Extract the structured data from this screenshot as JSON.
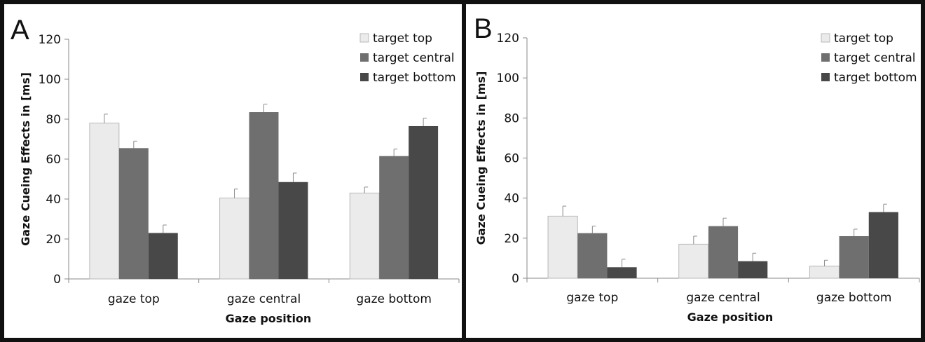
{
  "chart_data": [
    {
      "panel_label": "A",
      "type": "bar",
      "categories": [
        "gaze top",
        "gaze central",
        "gaze bottom"
      ],
      "series": [
        {
          "name": "target top",
          "color": "#ebebeb",
          "values": [
            78,
            40.5,
            43
          ],
          "errors": [
            4.5,
            4.5,
            3
          ]
        },
        {
          "name": "target central",
          "color": "#6f6f6f",
          "values": [
            65.5,
            83.5,
            61.5
          ],
          "errors": [
            3.5,
            4,
            3.5
          ]
        },
        {
          "name": "target bottom",
          "color": "#484848",
          "values": [
            23,
            48.5,
            76.5
          ],
          "errors": [
            4,
            4.5,
            4
          ]
        }
      ],
      "xlabel": "Gaze position",
      "ylabel": "Gaze Cueing Effects in [ms]",
      "ylim": [
        0,
        120
      ],
      "yticks": [
        0,
        20,
        40,
        60,
        80,
        100,
        120
      ],
      "grid": false,
      "legend_position": "top-right"
    },
    {
      "panel_label": "B",
      "type": "bar",
      "categories": [
        "gaze top",
        "gaze central",
        "gaze bottom"
      ],
      "series": [
        {
          "name": "target top",
          "color": "#ebebeb",
          "values": [
            31,
            17,
            6
          ],
          "errors": [
            5,
            4,
            3
          ]
        },
        {
          "name": "target central",
          "color": "#6f6f6f",
          "values": [
            22.5,
            26,
            21
          ],
          "errors": [
            3.5,
            4,
            3.5
          ]
        },
        {
          "name": "target bottom",
          "color": "#484848",
          "values": [
            5.5,
            8.5,
            33
          ],
          "errors": [
            4,
            4,
            4
          ]
        }
      ],
      "xlabel": "Gaze position",
      "ylabel": "Gaze Cueing Effects in [ms]",
      "ylim": [
        0,
        120
      ],
      "yticks": [
        0,
        20,
        40,
        60,
        80,
        100,
        120
      ],
      "grid": false,
      "legend_position": "top-right"
    }
  ]
}
